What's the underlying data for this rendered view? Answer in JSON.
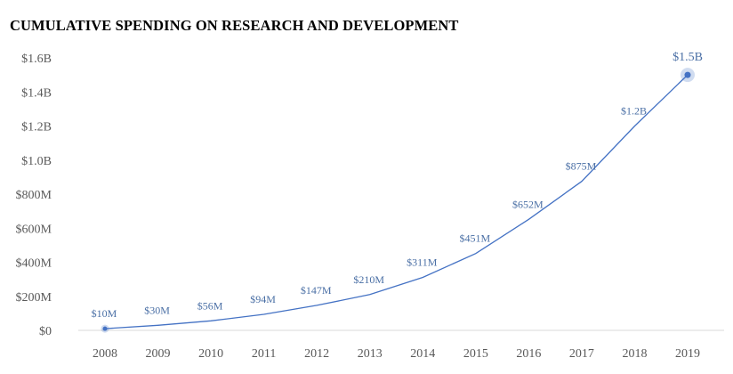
{
  "chart_data": {
    "type": "line",
    "title": "CUMULATIVE SPENDING ON RESEARCH AND DEVELOPMENT",
    "xlabel": "",
    "ylabel": "",
    "categories": [
      "2008",
      "2009",
      "2010",
      "2011",
      "2012",
      "2013",
      "2014",
      "2015",
      "2016",
      "2017",
      "2018",
      "2019"
    ],
    "values": [
      10,
      30,
      56,
      94,
      147,
      210,
      311,
      451,
      652,
      875,
      1200,
      1500
    ],
    "value_units": "millions of USD",
    "data_labels": [
      "$10M",
      "$30M",
      "$56M",
      "$94M",
      "$147M",
      "$210M",
      "$311M",
      "$451M",
      "$652M",
      "$875M",
      "$1.2B",
      "$1.5B"
    ],
    "ylim": [
      0,
      1600
    ],
    "yticks": [
      0,
      200,
      400,
      600,
      800,
      1000,
      1200,
      1400,
      1600
    ],
    "ytick_labels": [
      "$0",
      "$200M",
      "$400M",
      "$600M",
      "$800M",
      "$1.0B",
      "$1.2B",
      "$1.4B",
      "$1.6B"
    ],
    "grid": false,
    "legend": "none",
    "line_color": "#4472c4",
    "label_color": "#4a6fa5",
    "axis_color": "#d9d9d9"
  }
}
